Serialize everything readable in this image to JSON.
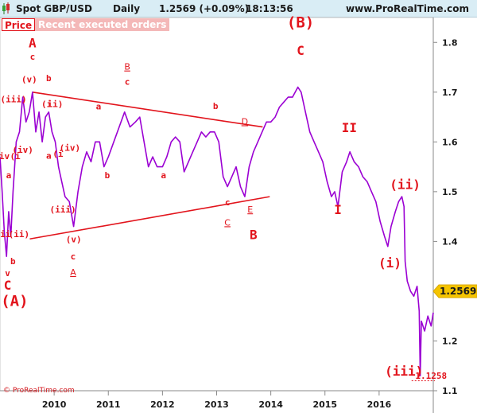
{
  "header": {
    "instrument": "Spot GBP/USD",
    "timeframe": "Daily",
    "last_price": "1.2569 (+0.09%)",
    "time": "18:13:56",
    "site": "www.ProRealTime.com"
  },
  "tabs": {
    "price": "Price",
    "orders": "Recent executed orders"
  },
  "copyright": "© ProRealTime.com",
  "colors": {
    "price_series": "#9b00d3",
    "wave_labels": "#e2141c",
    "trend_lines": "#e2141c",
    "price_badge": "#f5c400",
    "header_bg": "#d9edf5"
  },
  "chart_data": {
    "type": "line",
    "title": "Spot GBP/USD Daily",
    "xlabel": "",
    "ylabel": "",
    "xlim": [
      2009.0,
      2017.0
    ],
    "ylim": [
      1.1,
      1.85
    ],
    "x_ticks": [
      "2010",
      "2011",
      "2012",
      "2013",
      "2014",
      "2015",
      "2016"
    ],
    "y_ticks": [
      "1.8",
      "1.7",
      "1.6",
      "1.5",
      "1.4",
      "1.3",
      "1.2",
      "1.1"
    ],
    "last_value": "1.2569",
    "low_label": "1.1258",
    "series": [
      {
        "values": [
          [
            2009.0,
            1.57
          ],
          [
            2009.04,
            1.5
          ],
          [
            2009.08,
            1.42
          ],
          [
            2009.12,
            1.37
          ],
          [
            2009.16,
            1.46
          ],
          [
            2009.2,
            1.41
          ],
          [
            2009.24,
            1.5
          ],
          [
            2009.3,
            1.6
          ],
          [
            2009.36,
            1.62
          ],
          [
            2009.42,
            1.69
          ],
          [
            2009.48,
            1.64
          ],
          [
            2009.54,
            1.66
          ],
          [
            2009.6,
            1.7
          ],
          [
            2009.66,
            1.62
          ],
          [
            2009.72,
            1.66
          ],
          [
            2009.78,
            1.6
          ],
          [
            2009.84,
            1.65
          ],
          [
            2009.9,
            1.66
          ],
          [
            2009.96,
            1.62
          ],
          [
            2010.02,
            1.6
          ],
          [
            2010.08,
            1.55
          ],
          [
            2010.14,
            1.52
          ],
          [
            2010.2,
            1.49
          ],
          [
            2010.28,
            1.48
          ],
          [
            2010.36,
            1.43
          ],
          [
            2010.44,
            1.5
          ],
          [
            2010.52,
            1.55
          ],
          [
            2010.6,
            1.58
          ],
          [
            2010.68,
            1.56
          ],
          [
            2010.76,
            1.6
          ],
          [
            2010.84,
            1.6
          ],
          [
            2010.92,
            1.55
          ],
          [
            2011.0,
            1.57
          ],
          [
            2011.1,
            1.6
          ],
          [
            2011.2,
            1.63
          ],
          [
            2011.3,
            1.66
          ],
          [
            2011.4,
            1.63
          ],
          [
            2011.5,
            1.64
          ],
          [
            2011.58,
            1.65
          ],
          [
            2011.66,
            1.6
          ],
          [
            2011.74,
            1.55
          ],
          [
            2011.82,
            1.57
          ],
          [
            2011.9,
            1.55
          ],
          [
            2012.0,
            1.55
          ],
          [
            2012.08,
            1.57
          ],
          [
            2012.16,
            1.6
          ],
          [
            2012.24,
            1.61
          ],
          [
            2012.32,
            1.6
          ],
          [
            2012.4,
            1.54
          ],
          [
            2012.48,
            1.56
          ],
          [
            2012.56,
            1.58
          ],
          [
            2012.64,
            1.6
          ],
          [
            2012.72,
            1.62
          ],
          [
            2012.8,
            1.61
          ],
          [
            2012.88,
            1.62
          ],
          [
            2012.96,
            1.62
          ],
          [
            2013.04,
            1.6
          ],
          [
            2013.12,
            1.53
          ],
          [
            2013.2,
            1.51
          ],
          [
            2013.28,
            1.53
          ],
          [
            2013.36,
            1.55
          ],
          [
            2013.44,
            1.51
          ],
          [
            2013.52,
            1.49
          ],
          [
            2013.6,
            1.55
          ],
          [
            2013.68,
            1.58
          ],
          [
            2013.76,
            1.6
          ],
          [
            2013.84,
            1.62
          ],
          [
            2013.92,
            1.64
          ],
          [
            2014.0,
            1.64
          ],
          [
            2014.08,
            1.65
          ],
          [
            2014.16,
            1.67
          ],
          [
            2014.24,
            1.68
          ],
          [
            2014.32,
            1.69
          ],
          [
            2014.4,
            1.69
          ],
          [
            2014.5,
            1.71
          ],
          [
            2014.56,
            1.7
          ],
          [
            2014.64,
            1.66
          ],
          [
            2014.72,
            1.62
          ],
          [
            2014.8,
            1.6
          ],
          [
            2014.88,
            1.58
          ],
          [
            2014.96,
            1.56
          ],
          [
            2015.04,
            1.52
          ],
          [
            2015.12,
            1.49
          ],
          [
            2015.18,
            1.5
          ],
          [
            2015.24,
            1.47
          ],
          [
            2015.32,
            1.54
          ],
          [
            2015.4,
            1.56
          ],
          [
            2015.46,
            1.58
          ],
          [
            2015.54,
            1.56
          ],
          [
            2015.62,
            1.55
          ],
          [
            2015.7,
            1.53
          ],
          [
            2015.78,
            1.52
          ],
          [
            2015.86,
            1.5
          ],
          [
            2015.94,
            1.48
          ],
          [
            2016.02,
            1.44
          ],
          [
            2016.1,
            1.41
          ],
          [
            2016.16,
            1.39
          ],
          [
            2016.22,
            1.43
          ],
          [
            2016.3,
            1.46
          ],
          [
            2016.36,
            1.48
          ],
          [
            2016.42,
            1.49
          ],
          [
            2016.46,
            1.47
          ],
          [
            2016.48,
            1.36
          ],
          [
            2016.52,
            1.32
          ],
          [
            2016.58,
            1.3
          ],
          [
            2016.64,
            1.29
          ],
          [
            2016.7,
            1.31
          ],
          [
            2016.74,
            1.26
          ],
          [
            2016.76,
            1.13
          ],
          [
            2016.78,
            1.24
          ],
          [
            2016.84,
            1.22
          ],
          [
            2016.9,
            1.25
          ],
          [
            2016.96,
            1.23
          ],
          [
            2017.0,
            1.2569
          ]
        ]
      }
    ],
    "trendlines": [
      {
        "from": [
          2009.6,
          1.7
        ],
        "to": [
          2013.85,
          1.63
        ]
      },
      {
        "from": [
          2009.55,
          1.405
        ],
        "to": [
          2013.98,
          1.49
        ]
      }
    ],
    "low_marker": {
      "from": [
        2016.6,
        1.12
      ],
      "to": [
        2017.03,
        1.12
      ]
    },
    "annotations": [
      {
        "text": "A",
        "x": 2009.6,
        "y": 1.79,
        "size": "lg"
      },
      {
        "text": "c",
        "x": 2009.6,
        "y": 1.765,
        "size": "sm"
      },
      {
        "text": "(v)",
        "x": 2009.54,
        "y": 1.72,
        "size": "sm"
      },
      {
        "text": "b",
        "x": 2009.9,
        "y": 1.722,
        "size": "sm"
      },
      {
        "text": "(iii)",
        "x": 2009.25,
        "y": 1.68,
        "size": "sm"
      },
      {
        "text": "(i",
        "x": 2009.86,
        "y": 1.67,
        "size": "sm"
      },
      {
        "text": "ii)",
        "x": 2010.02,
        "y": 1.67,
        "size": "sm"
      },
      {
        "text": "a",
        "x": 2010.82,
        "y": 1.665,
        "size": "sm"
      },
      {
        "text": "B",
        "x": 2011.35,
        "y": 1.745,
        "size": "sm",
        "underline": true
      },
      {
        "text": "c",
        "x": 2011.35,
        "y": 1.715,
        "size": "sm"
      },
      {
        "text": "b",
        "x": 2012.98,
        "y": 1.666,
        "size": "sm"
      },
      {
        "text": "D",
        "x": 2013.52,
        "y": 1.635,
        "size": "sm",
        "underline": true
      },
      {
        "text": "(iv)",
        "x": 2009.42,
        "y": 1.578,
        "size": "sm"
      },
      {
        "text": "a",
        "x": 2009.9,
        "y": 1.566,
        "size": "sm"
      },
      {
        "text": "(i",
        "x": 2010.07,
        "y": 1.57,
        "size": "sm"
      },
      {
        "text": "(iv)",
        "x": 2010.29,
        "y": 1.582,
        "size": "sm"
      },
      {
        "text": "iv",
        "x": 2009.08,
        "y": 1.565,
        "size": "sm"
      },
      {
        "text": "(i",
        "x": 2009.28,
        "y": 1.565,
        "size": "sm"
      },
      {
        "text": "a",
        "x": 2009.16,
        "y": 1.527,
        "size": "sm"
      },
      {
        "text": "b",
        "x": 2010.98,
        "y": 1.527,
        "size": "sm"
      },
      {
        "text": "a",
        "x": 2012.02,
        "y": 1.527,
        "size": "sm"
      },
      {
        "text": "(iii)",
        "x": 2010.16,
        "y": 1.458,
        "size": "sm"
      },
      {
        "text": "c",
        "x": 2013.2,
        "y": 1.473,
        "size": "sm"
      },
      {
        "text": "E",
        "x": 2013.62,
        "y": 1.458,
        "size": "sm",
        "underline": true
      },
      {
        "text": "C",
        "x": 2013.2,
        "y": 1.432,
        "size": "sm",
        "underline": true
      },
      {
        "text": "ii",
        "x": 2009.1,
        "y": 1.409,
        "size": "sm"
      },
      {
        "text": "(ii)",
        "x": 2009.35,
        "y": 1.409,
        "size": "sm"
      },
      {
        "text": "B",
        "x": 2013.68,
        "y": 1.405,
        "size": "lg"
      },
      {
        "text": "(v)",
        "x": 2010.36,
        "y": 1.398,
        "size": "sm"
      },
      {
        "text": "c",
        "x": 2010.35,
        "y": 1.364,
        "size": "sm"
      },
      {
        "text": "b",
        "x": 2009.24,
        "y": 1.354,
        "size": "sm"
      },
      {
        "text": "A",
        "x": 2010.35,
        "y": 1.332,
        "size": "sm",
        "underline": true
      },
      {
        "text": "v",
        "x": 2009.14,
        "y": 1.33,
        "size": "sm"
      },
      {
        "text": "C",
        "x": 2009.14,
        "y": 1.303,
        "size": "lg"
      },
      {
        "text": "(A)",
        "x": 2009.27,
        "y": 1.27,
        "size": "xl"
      },
      {
        "text": "(B)",
        "x": 2014.55,
        "y": 1.83,
        "size": "xl"
      },
      {
        "text": "C",
        "x": 2014.55,
        "y": 1.775,
        "size": "lg"
      },
      {
        "text": "II",
        "x": 2015.45,
        "y": 1.62,
        "size": "lg"
      },
      {
        "text": "I",
        "x": 2015.24,
        "y": 1.455,
        "size": "lg"
      },
      {
        "text": "(ii)",
        "x": 2016.48,
        "y": 1.505,
        "size": "lg"
      },
      {
        "text": "(i)",
        "x": 2016.2,
        "y": 1.348,
        "size": "lg"
      },
      {
        "text": "(iii)",
        "x": 2016.46,
        "y": 1.13,
        "size": "lg"
      },
      {
        "text": "1.1258",
        "x": 2016.96,
        "y": 1.124,
        "size": "sm"
      }
    ]
  }
}
